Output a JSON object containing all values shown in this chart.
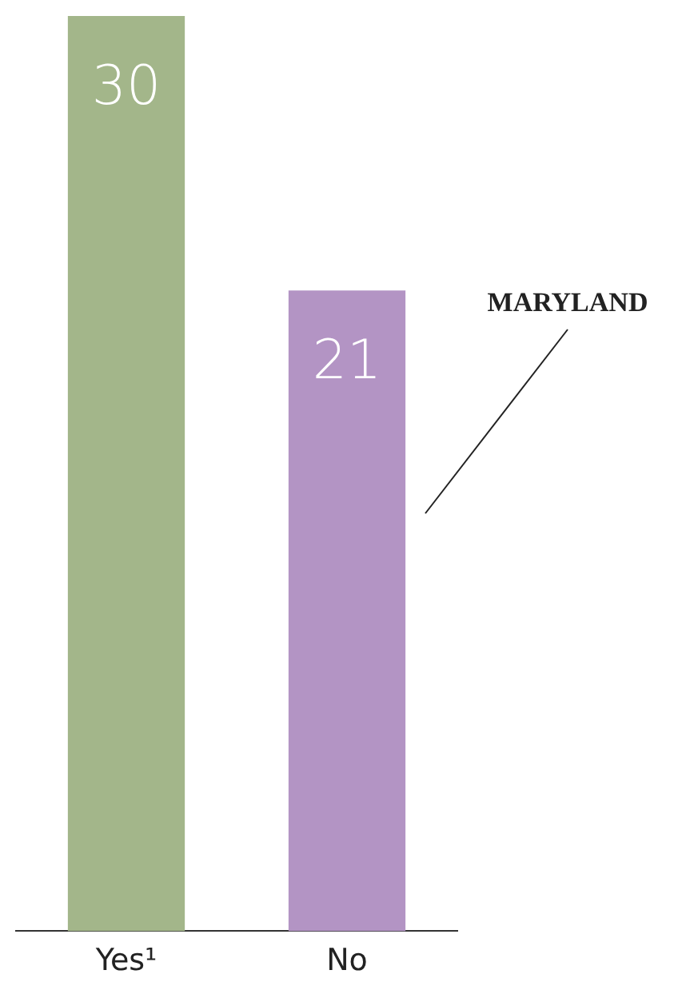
{
  "chart_data": {
    "type": "bar",
    "categories": [
      "Yes¹",
      "No"
    ],
    "values": [
      30,
      21
    ],
    "colors": [
      "#a3b68a",
      "#b394c4"
    ],
    "ylim": [
      0,
      30
    ],
    "tick_labels": "x",
    "grid": false,
    "data_labels": true,
    "annotations": [
      "MARYLAND"
    ]
  }
}
